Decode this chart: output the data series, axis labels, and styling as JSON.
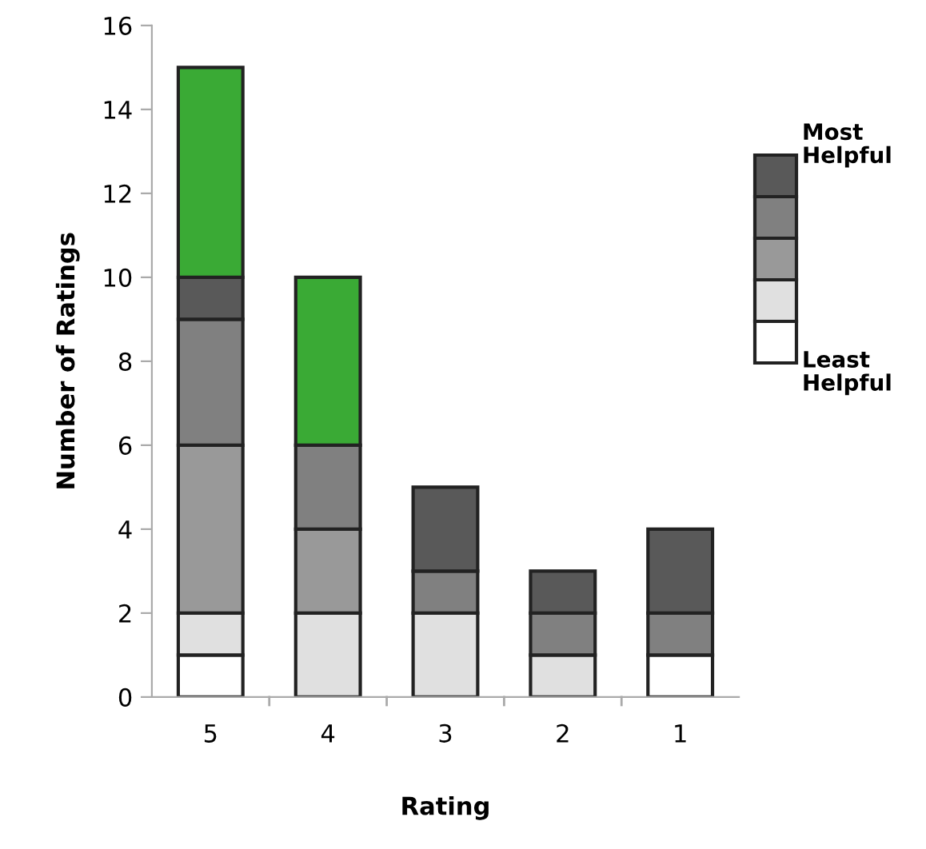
{
  "chart_data": {
    "type": "bar",
    "stacked": true,
    "xlabel": "Rating",
    "ylabel": "Number of Ratings",
    "categories": [
      "5",
      "4",
      "3",
      "2",
      "1"
    ],
    "series": [
      {
        "name": "Least Helpful",
        "color": "#ffffff",
        "values": [
          1,
          0,
          0,
          0,
          1
        ]
      },
      {
        "color": "#e0e0e0",
        "values": [
          1,
          2,
          2,
          1,
          0
        ]
      },
      {
        "color": "#999999",
        "values": [
          4,
          2,
          0,
          0,
          0
        ]
      },
      {
        "color": "#808080",
        "values": [
          3,
          2,
          1,
          1,
          1
        ]
      },
      {
        "name": "Most Helpful",
        "color": "#595959",
        "values": [
          1,
          0,
          2,
          1,
          2
        ]
      },
      {
        "color": "#3aaa35",
        "values": [
          5,
          4,
          0,
          0,
          0
        ]
      }
    ],
    "ylim": [
      0,
      16
    ],
    "yticks": [
      0,
      2,
      4,
      6,
      8,
      10,
      12,
      14,
      16
    ],
    "grid": false,
    "legend": "right"
  }
}
